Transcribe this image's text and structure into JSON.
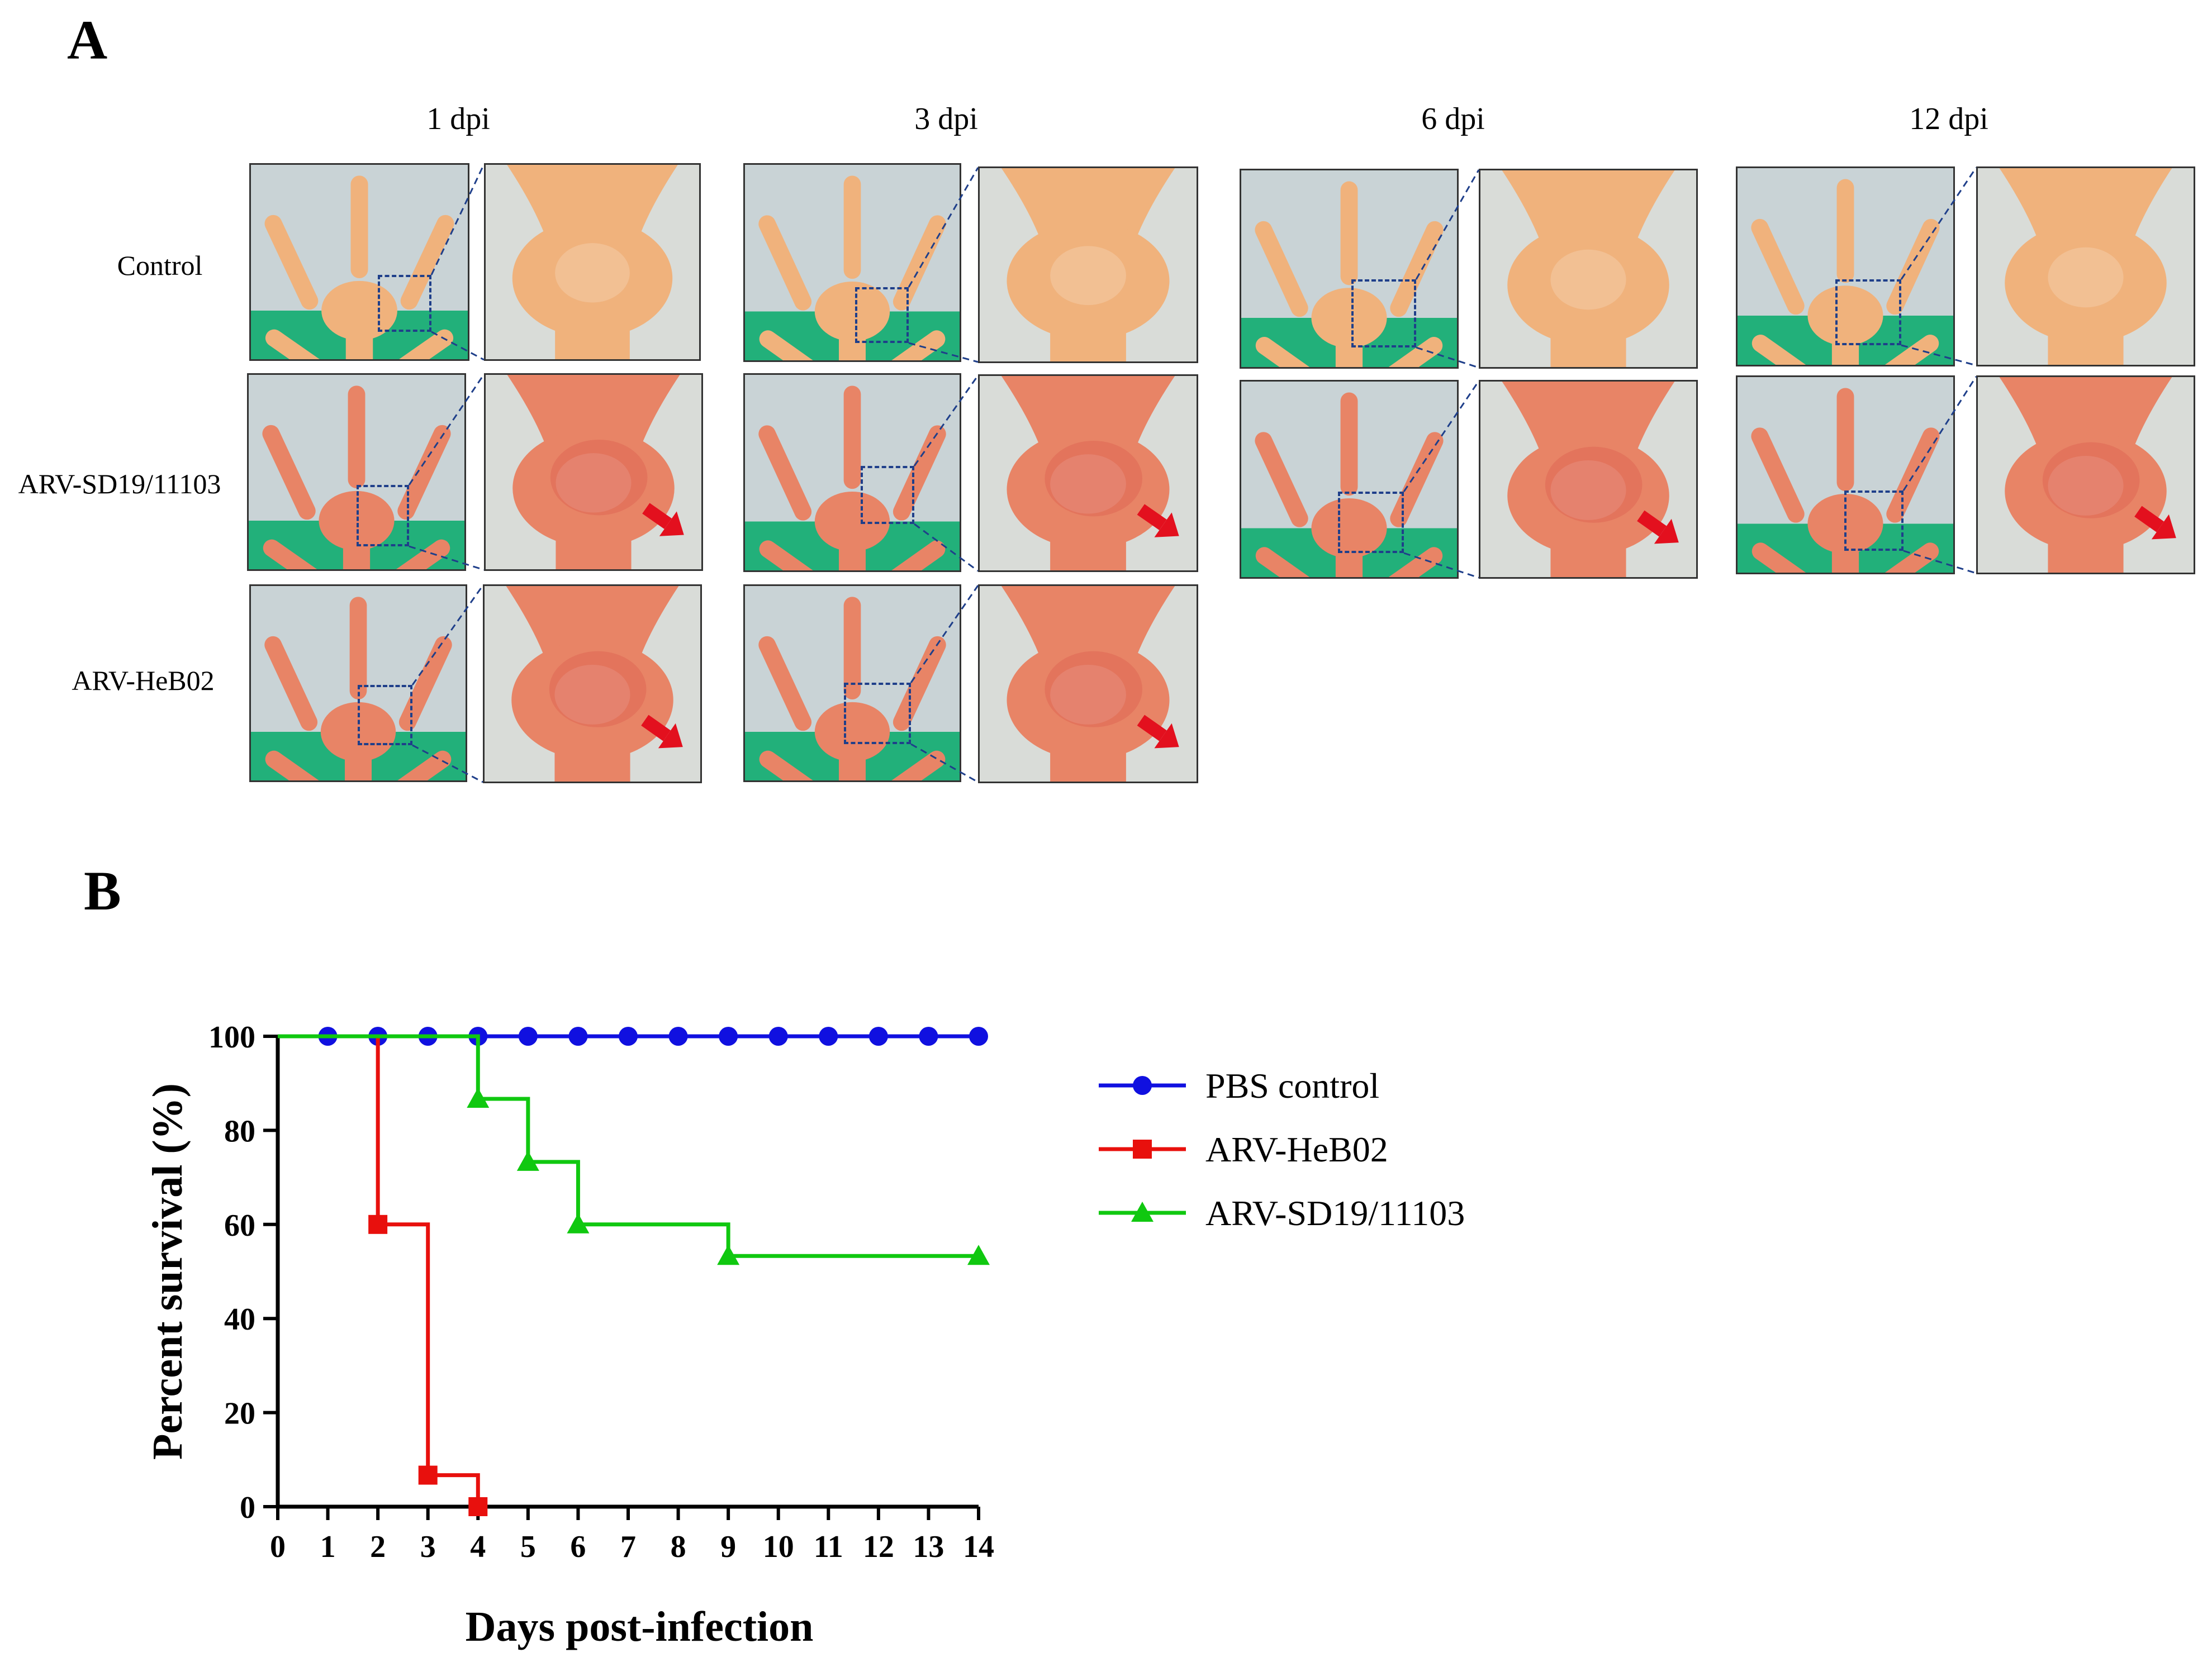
{
  "figure": {
    "panel_a_label": "A",
    "panel_b_label": "B",
    "columns": [
      "1  dpi",
      "3  dpi",
      "6  dpi",
      "12  dpi"
    ],
    "rows": [
      "Control",
      "ARV-SD19/11103",
      "ARV-HeB02"
    ]
  },
  "colors": {
    "pbs": "#1010e0",
    "heb02": "#e8100d",
    "sd19": "#10c810",
    "box": "#1f3f8a",
    "arrow": "#e3101e",
    "skin_control": "#f0b27c",
    "skin_infected": "#e88466",
    "glove": "#22b07a"
  },
  "chart_data": {
    "type": "line",
    "title": "",
    "xlabel": "Days post-infection",
    "ylabel": "Percent survival (%)",
    "xlim": [
      0,
      14
    ],
    "ylim": [
      0,
      100
    ],
    "xticks": [
      0,
      1,
      2,
      3,
      4,
      5,
      6,
      7,
      8,
      9,
      10,
      11,
      12,
      13,
      14
    ],
    "yticks": [
      0,
      20,
      40,
      60,
      80,
      100
    ],
    "step": true,
    "legend_position": "right",
    "series": [
      {
        "name": "PBS control",
        "color": "#1010e0",
        "marker": "circle",
        "line": [
          [
            0,
            100
          ],
          [
            14,
            100
          ]
        ],
        "markers": [
          [
            1,
            100
          ],
          [
            2,
            100
          ],
          [
            3,
            100
          ],
          [
            4,
            100
          ],
          [
            5,
            100
          ],
          [
            6,
            100
          ],
          [
            7,
            100
          ],
          [
            8,
            100
          ],
          [
            9,
            100
          ],
          [
            10,
            100
          ],
          [
            11,
            100
          ],
          [
            12,
            100
          ],
          [
            13,
            100
          ],
          [
            14,
            100
          ]
        ]
      },
      {
        "name": "ARV-HeB02",
        "color": "#e8100d",
        "marker": "square",
        "line": [
          [
            0,
            100
          ],
          [
            2,
            100
          ],
          [
            2,
            60
          ],
          [
            3,
            60
          ],
          [
            3,
            6.7
          ],
          [
            4,
            6.7
          ],
          [
            4,
            0
          ]
        ],
        "markers": [
          [
            2,
            60
          ],
          [
            3,
            6.7
          ],
          [
            4,
            0
          ]
        ]
      },
      {
        "name": "ARV-SD19/11103",
        "color": "#10c810",
        "marker": "triangle",
        "line": [
          [
            0,
            100
          ],
          [
            4,
            100
          ],
          [
            4,
            86.7
          ],
          [
            5,
            86.7
          ],
          [
            5,
            73.3
          ],
          [
            6,
            73.3
          ],
          [
            6,
            60
          ],
          [
            9,
            60
          ],
          [
            9,
            53.3
          ],
          [
            14,
            53.3
          ]
        ],
        "markers": [
          [
            4,
            86.7
          ],
          [
            5,
            73.3
          ],
          [
            6,
            60
          ],
          [
            9,
            53.3
          ],
          [
            14,
            53.3
          ]
        ]
      }
    ]
  }
}
